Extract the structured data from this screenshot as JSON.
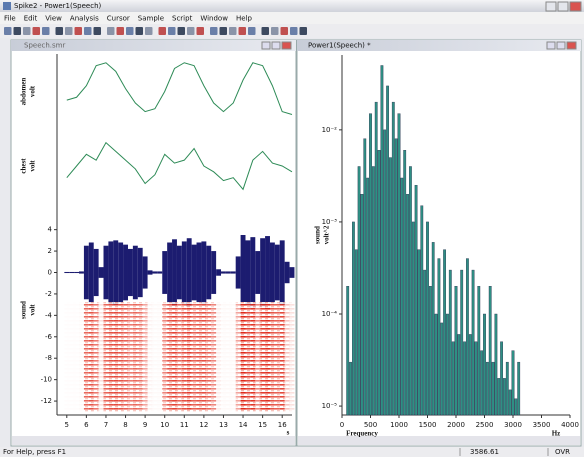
{
  "app": {
    "title": "Spike2 - Power1(Speech)",
    "menu": [
      "File",
      "Edit",
      "View",
      "Analysis",
      "Cursor",
      "Sample",
      "Script",
      "Window",
      "Help"
    ],
    "status": [
      "For Help, press F1",
      "3586.61",
      "OVR"
    ]
  },
  "windows": [
    {
      "title": "Speech.smr"
    },
    {
      "title": "Power1(Speech) *"
    }
  ],
  "chart_data": [
    {
      "type": "multichannel",
      "xlim": [
        4.5,
        16.5
      ],
      "xticks": [
        5,
        6,
        7,
        8,
        9,
        10,
        11,
        12,
        13,
        14,
        15,
        16
      ],
      "xlabel": "s",
      "channels": [
        {
          "name": "abdomen",
          "unit": "volt",
          "type": "line",
          "color": "#2e8b57",
          "ylim": [
            -0.1,
            1.1
          ],
          "x": [
            5,
            5.5,
            6,
            6.5,
            7,
            7.5,
            8,
            8.5,
            9,
            9.5,
            10,
            10.5,
            11,
            11.5,
            12,
            12.5,
            13,
            13.5,
            14,
            14.5,
            15,
            15.5,
            16,
            16.5
          ],
          "values": [
            0.35,
            0.4,
            0.6,
            0.95,
            1.0,
            0.85,
            0.55,
            0.3,
            0.15,
            0.2,
            0.5,
            0.9,
            1.0,
            0.95,
            0.6,
            0.3,
            0.15,
            0.3,
            0.7,
            1.0,
            0.95,
            0.6,
            0.15,
            0.1
          ]
        },
        {
          "name": "chest",
          "unit": "volt",
          "type": "line",
          "color": "#2e8b57",
          "ylim": [
            -0.1,
            1.1
          ],
          "x": [
            5,
            5.5,
            6,
            6.5,
            7,
            7.5,
            8,
            8.5,
            9,
            9.5,
            10,
            10.5,
            11,
            11.5,
            12,
            12.5,
            13,
            13.5,
            14,
            14.5,
            15,
            15.5,
            16,
            16.5
          ],
          "values": [
            0.3,
            0.5,
            0.7,
            0.6,
            0.9,
            0.75,
            0.6,
            0.45,
            0.2,
            0.35,
            0.7,
            0.55,
            0.6,
            0.8,
            0.5,
            0.4,
            0.25,
            0.3,
            0.1,
            0.6,
            0.75,
            0.55,
            0.5,
            0.4
          ]
        },
        {
          "name": "sound",
          "unit": "volt",
          "type": "waveform",
          "color": "#1c1c70",
          "spectrogram_color": "#e02a1a",
          "ylim": [
            -13.3,
            6.3
          ],
          "yticks": [
            4,
            2,
            0,
            -2,
            -4,
            -6,
            -8,
            -10,
            -12
          ],
          "x": [
            5,
            5.25,
            5.5,
            5.75,
            6,
            6.25,
            6.5,
            6.75,
            7,
            7.25,
            7.5,
            7.75,
            8,
            8.25,
            8.5,
            8.75,
            9,
            9.25,
            9.5,
            9.75,
            10,
            10.25,
            10.5,
            10.75,
            11,
            11.25,
            11.5,
            11.75,
            12,
            12.25,
            12.5,
            12.75,
            13,
            13.25,
            13.5,
            13.75,
            14,
            14.25,
            14.5,
            14.75,
            15,
            15.25,
            15.5,
            15.75,
            16,
            16.25,
            16.5
          ],
          "values": [
            0.05,
            0.05,
            0.05,
            0.1,
            2.5,
            2.8,
            2.2,
            0.5,
            2.5,
            2.9,
            3.0,
            2.8,
            2.6,
            2.2,
            2.5,
            2.3,
            1.5,
            0.2,
            0.1,
            0.1,
            2.0,
            2.8,
            3.1,
            2.5,
            2.9,
            3.2,
            2.6,
            2.8,
            2.9,
            2.5,
            2.0,
            0.3,
            0.1,
            0.1,
            0.1,
            1.5,
            3.5,
            3.0,
            3.3,
            2.0,
            3.2,
            3.4,
            2.8,
            2.6,
            3.0,
            1.0,
            0.5
          ]
        }
      ]
    },
    {
      "type": "bar",
      "log": true,
      "color": "#2f8f84",
      "edge_color": "#2a3550",
      "channel": "sound",
      "unit": "volt^2",
      "xlabel": "Frequency",
      "xunit": "Hz",
      "xlim": [
        0,
        4000
      ],
      "xticks": [
        0,
        500,
        1000,
        1500,
        2000,
        2500,
        3000,
        3500,
        4000
      ],
      "ylim": [
        8e-06,
        0.065
      ],
      "yticks": [
        {
          "value": 0.01,
          "label": "10⁻²"
        },
        {
          "value": 0.001,
          "label": "10⁻³"
        },
        {
          "value": 0.0001,
          "label": "10⁻⁴"
        },
        {
          "value": 1e-05,
          "label": "10⁻⁵"
        }
      ],
      "x": [
        100,
        150,
        200,
        250,
        300,
        350,
        400,
        450,
        500,
        550,
        600,
        650,
        700,
        750,
        800,
        850,
        900,
        950,
        1000,
        1050,
        1100,
        1150,
        1200,
        1250,
        1300,
        1350,
        1400,
        1450,
        1500,
        1550,
        1600,
        1650,
        1700,
        1750,
        1800,
        1850,
        1900,
        1950,
        2000,
        2050,
        2100,
        2150,
        2200,
        2250,
        2300,
        2350,
        2400,
        2450,
        2500,
        2550,
        2600,
        2650,
        2700,
        2750,
        2800,
        2850,
        2900,
        2950,
        3000,
        3050,
        3100
      ],
      "values": [
        0.0002,
        3e-05,
        0.001,
        0.0005,
        0.004,
        0.002,
        0.008,
        0.003,
        0.015,
        0.004,
        0.02,
        0.006,
        0.05,
        0.01,
        0.03,
        0.005,
        0.02,
        0.008,
        0.015,
        0.003,
        0.006,
        0.002,
        0.004,
        0.001,
        0.0025,
        0.0005,
        0.0015,
        0.0003,
        0.001,
        0.0002,
        0.0006,
        0.0001,
        0.0004,
        8e-05,
        0.0005,
        0.0001,
        0.0003,
        5e-05,
        0.0002,
        6e-05,
        0.0003,
        5e-05,
        0.0004,
        6e-05,
        0.0003,
        5e-05,
        0.0002,
        4e-05,
        0.0001,
        3e-05,
        0.0002,
        3e-05,
        0.0001,
        2e-05,
        5e-05,
        2e-05,
        3e-05,
        1.5e-05,
        4e-05,
        1.2e-05,
        3e-05
      ]
    }
  ]
}
